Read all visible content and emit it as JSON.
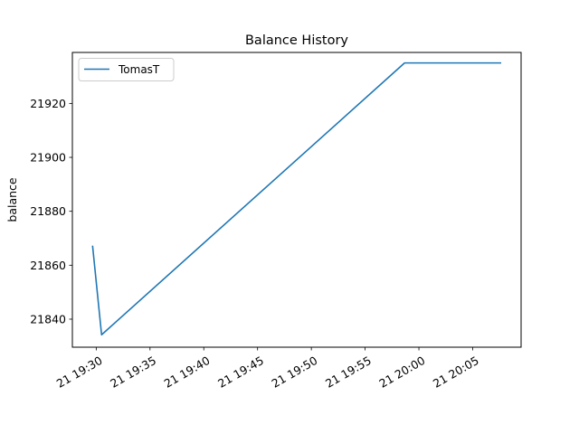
{
  "chart_data": {
    "type": "line",
    "title": "Balance History",
    "xlabel": "",
    "ylabel": "balance",
    "x_tick_labels": [
      "21 19:30",
      "21 19:35",
      "21 19:40",
      "21 19:45",
      "21 19:50",
      "21 19:55",
      "21 20:00",
      "21 20:05"
    ],
    "y_tick_labels": [
      "21840",
      "21860",
      "21880",
      "21900",
      "21920"
    ],
    "xlim": [
      "19:27:47",
      "20:09:30"
    ],
    "ylim": [
      21829.6,
      21938.9
    ],
    "grid": false,
    "legend_position": "upper-left",
    "series": [
      {
        "name": "TomasT",
        "color": "#1f77b4",
        "points": [
          {
            "x": "19:29:40",
            "y": 21867
          },
          {
            "x": "19:30:30",
            "y": 21834.2
          },
          {
            "x": "19:58:40",
            "y": 21935
          },
          {
            "x": "20:07:35",
            "y": 21935
          }
        ]
      }
    ]
  }
}
